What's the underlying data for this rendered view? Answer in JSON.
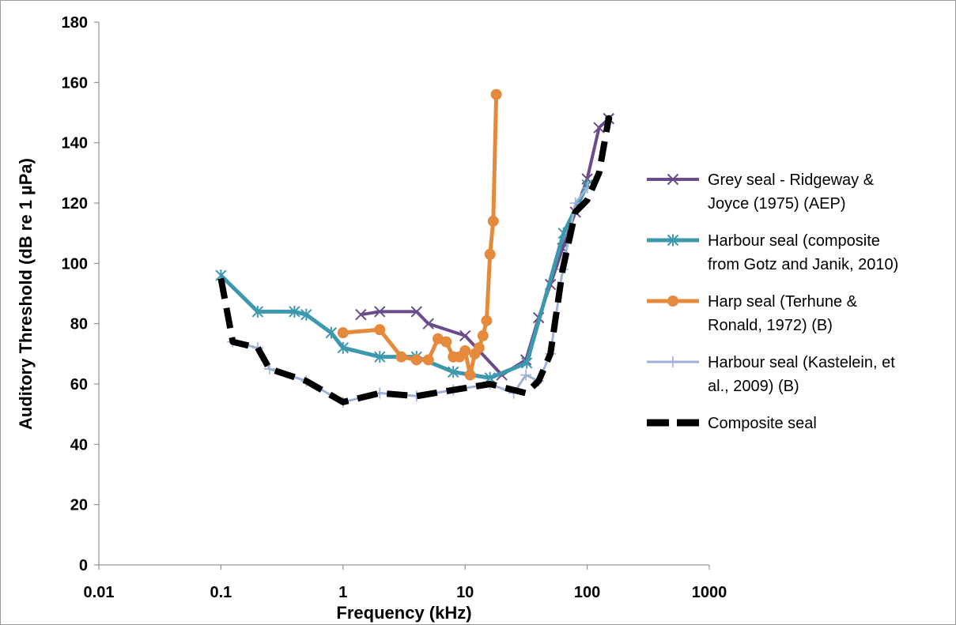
{
  "chart_data": {
    "type": "line",
    "title": "",
    "xlabel": "Frequency (kHz)",
    "ylabel": "Auditory Threshold (dB re 1 µPa)",
    "xscale": "log",
    "xlim": [
      0.01,
      1000
    ],
    "ylim": [
      0,
      180
    ],
    "xticks": [
      0.01,
      0.1,
      1,
      10,
      100,
      1000
    ],
    "xtick_labels": [
      "0.01",
      "0.1",
      "1",
      "10",
      "100",
      "1000"
    ],
    "yticks": [
      0,
      20,
      40,
      60,
      80,
      100,
      120,
      140,
      160,
      180
    ],
    "ytick_labels": [
      "0",
      "20",
      "40",
      "60",
      "80",
      "100",
      "120",
      "140",
      "160",
      "180"
    ],
    "grid": false,
    "legend_position": "right",
    "series": [
      {
        "name": "Grey seal - Ridgeway & Joyce (1975) (AEP)",
        "legend_lines": [
          "Grey seal - Ridgeway &",
          "Joyce (1975) (AEP)"
        ],
        "color": "#6b4c8a",
        "marker": "x",
        "line_width": 4,
        "x": [
          1.4,
          2,
          4,
          5,
          10,
          20,
          31.5,
          40,
          50,
          63,
          80,
          100,
          125,
          150
        ],
        "y": [
          83,
          84,
          84,
          80,
          76,
          63,
          68,
          82,
          93,
          105,
          117,
          128,
          145,
          148
        ]
      },
      {
        "name": "Harbour seal (composite from Gotz and Janik, 2010)",
        "legend_lines": [
          "Harbour seal (composite",
          "from Gotz and Janik, 2010)"
        ],
        "color": "#3e98ad",
        "marker": "asterisk",
        "line_width": 5,
        "x": [
          0.1,
          0.2,
          0.4,
          0.5,
          0.8,
          1,
          2,
          4,
          8,
          16,
          32,
          64,
          100
        ],
        "y": [
          96,
          84,
          84,
          83,
          77,
          72,
          69,
          69,
          64,
          62,
          67,
          110,
          126
        ]
      },
      {
        "name": "Harp seal (Terhune & Ronald, 1972) (B)",
        "legend_lines": [
          "Harp seal (Terhune &",
          "Ronald, 1972) (B)"
        ],
        "color": "#e58a3c",
        "marker": "circle",
        "line_width": 5,
        "x": [
          1,
          2,
          3,
          4,
          5,
          6,
          7,
          8,
          9,
          10,
          11,
          12,
          13,
          14,
          15,
          16,
          17,
          18
        ],
        "y": [
          77,
          78,
          69,
          68,
          68,
          75,
          74,
          69,
          69,
          71,
          63,
          70,
          72,
          76,
          81,
          103,
          114,
          156
        ]
      },
      {
        "name": "Harbour seal (Kastelein, et al., 2009) (B)",
        "legend_lines": [
          "Harbour seal (Kastelein, et",
          "al., 2009) (B)"
        ],
        "color": "#9fb1d6",
        "marker": "plus",
        "line_width": 3,
        "x": [
          0.125,
          0.2,
          0.25,
          0.5,
          1,
          2,
          4,
          8,
          16,
          25,
          31.5,
          40,
          50,
          63,
          80,
          100
        ],
        "y": [
          74,
          72,
          65,
          61,
          54,
          57,
          56,
          58,
          60,
          57,
          63,
          61,
          70,
          98,
          120,
          125
        ]
      },
      {
        "name": "Composite seal",
        "legend_lines": [
          "Composite seal"
        ],
        "color": "#000000",
        "marker": "none",
        "dashed": true,
        "line_width": 8,
        "x": [
          0.1,
          0.125,
          0.2,
          0.25,
          0.5,
          1,
          2,
          4,
          8,
          16,
          25,
          31.5,
          40,
          50,
          63,
          80,
          100,
          125,
          150
        ],
        "y": [
          95,
          74,
          72,
          65,
          61,
          54,
          57,
          56,
          58,
          60,
          58,
          57,
          61,
          70,
          98,
          117,
          121,
          130,
          148
        ]
      }
    ]
  }
}
